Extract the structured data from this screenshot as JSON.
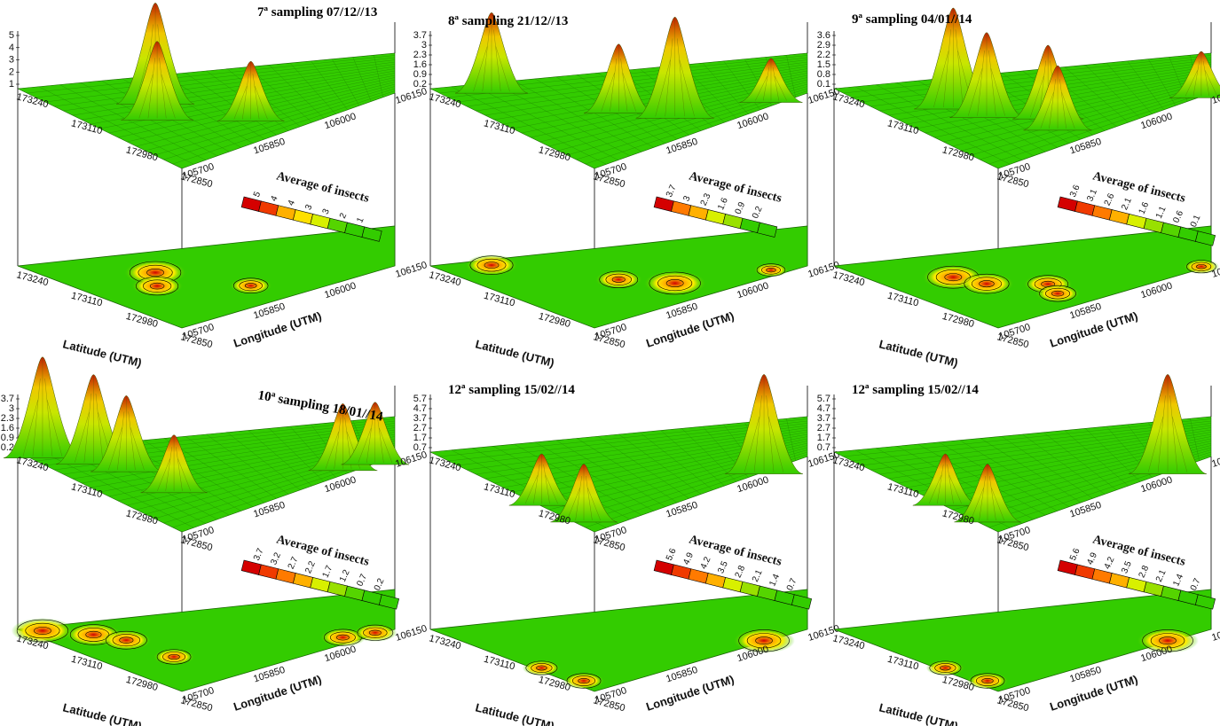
{
  "figure": {
    "colors": {
      "surface_low": "#33cc00",
      "surface_mid": "#ffee00",
      "surface_high": "#cc2200",
      "contour_line": "#000000",
      "box_line": "#000000"
    },
    "common": {
      "xlabel": "Latitude (UTM)",
      "ylabel": "Longitude (UTM)",
      "legend_title": "Average of insects",
      "legend_title_alt": "Average  of insects",
      "lat_ticks": [
        "173240",
        "173110",
        "172980",
        "172850"
      ],
      "lon_ticks": [
        "105700",
        "105850",
        "106000",
        "106150"
      ]
    }
  },
  "chart_data": [
    {
      "type": "heatmap",
      "title": "7ª sampling  07/12//13",
      "xlabel": "Latitude (UTM)",
      "ylabel": "Longitude (UTM)",
      "x_ticks": [
        "173240",
        "173110",
        "172980",
        "172850"
      ],
      "y_ticks": [
        "105700",
        "105850",
        "106000",
        "106150"
      ],
      "z_ticks": [
        "5",
        "4",
        "3",
        "2",
        "1"
      ],
      "legend_title": "Average  of insects",
      "legend_ticks": [
        "5",
        "4",
        "4",
        "3",
        "3",
        "2",
        "1"
      ],
      "zlim": [
        0,
        5
      ],
      "peaks": [
        {
          "lat": 173120,
          "lon": 105820,
          "value": 5.0
        },
        {
          "lat": 173050,
          "lon": 105790,
          "value": 3.6
        },
        {
          "lat": 172960,
          "lon": 105900,
          "value": 2.4
        }
      ]
    },
    {
      "type": "heatmap",
      "title": "8ª sampling  21/12//13",
      "xlabel": "Latitude (UTM)",
      "ylabel": "Longitude (UTM)",
      "x_ticks": [
        "173240",
        "173110",
        "172980",
        "172850"
      ],
      "y_ticks": [
        "105700",
        "105850",
        "106000",
        "106150"
      ],
      "z_ticks": [
        "3.7",
        "3",
        "2.3",
        "1.6",
        "0.9",
        "0.2"
      ],
      "legend_title": "Average of insects",
      "legend_ticks": [
        "3.7",
        "3",
        "2.3",
        "1.6",
        "0.9",
        "0.2"
      ],
      "zlim": [
        0.2,
        3.7
      ],
      "peaks": [
        {
          "lat": 173210,
          "lon": 105760,
          "value": 2.8
        },
        {
          "lat": 173040,
          "lon": 105860,
          "value": 2.3
        },
        {
          "lat": 172960,
          "lon": 105920,
          "value": 3.7
        },
        {
          "lat": 172900,
          "lon": 106080,
          "value": 1.2
        }
      ]
    },
    {
      "type": "heatmap",
      "title": "9ª sampling  04/01//14",
      "xlabel": "Latitude (UTM)",
      "ylabel": "Longitude (UTM)",
      "x_ticks": [
        "173240",
        "173110",
        "172980",
        "172850"
      ],
      "y_ticks": [
        "105700",
        "105850",
        "106000",
        "106150"
      ],
      "z_ticks": [
        "3.6",
        "2.9",
        "2.2",
        "1.5",
        "0.8",
        "0.1"
      ],
      "legend_title": "Average of insects",
      "legend_ticks": [
        "3.6",
        "3.1",
        "2.6",
        "2.1",
        "1.6",
        "1.1",
        "0.6",
        "0.1"
      ],
      "zlim": [
        0.1,
        3.6
      ],
      "peaks": [
        {
          "lat": 173110,
          "lon": 105790,
          "value": 3.6
        },
        {
          "lat": 173050,
          "lon": 105810,
          "value": 2.9
        },
        {
          "lat": 172990,
          "lon": 105880,
          "value": 2.4
        },
        {
          "lat": 172930,
          "lon": 105870,
          "value": 2.0
        },
        {
          "lat": 172870,
          "lon": 106130,
          "value": 1.2
        }
      ]
    },
    {
      "type": "heatmap",
      "title": "10ª sampling  18/01//14",
      "xlabel": "Latitude (UTM)",
      "ylabel": "Longitude (UTM)",
      "x_ticks": [
        "173240",
        "173110",
        "172980",
        "172850"
      ],
      "y_ticks": [
        "105700",
        "105850",
        "106000",
        "106150"
      ],
      "z_ticks": [
        "3.7",
        "3",
        "2.3",
        "1.6",
        "0.9",
        "0.2"
      ],
      "legend_title": "Average of insects",
      "legend_ticks": [
        "3.7",
        "3.2",
        "2.7",
        "2.2",
        "1.7",
        "1.2",
        "0.7",
        "0.2"
      ],
      "zlim": [
        0.2,
        3.7
      ],
      "peaks": [
        {
          "lat": 173220,
          "lon": 105720,
          "value": 3.7
        },
        {
          "lat": 173170,
          "lon": 105760,
          "value": 3.2
        },
        {
          "lat": 173120,
          "lon": 105780,
          "value": 2.6
        },
        {
          "lat": 173000,
          "lon": 105790,
          "value": 1.8
        },
        {
          "lat": 172900,
          "lon": 106050,
          "value": 2.2
        },
        {
          "lat": 172870,
          "lon": 106110,
          "value": 2.0
        }
      ]
    },
    {
      "type": "heatmap",
      "title": "12ª sampling 15/02//14",
      "xlabel": "Latitude (UTM)",
      "ylabel": "Longitude (UTM)",
      "x_ticks": [
        "173240",
        "173110",
        "172980",
        "172850"
      ],
      "y_ticks": [
        "105700",
        "105850",
        "106000",
        "106150"
      ],
      "z_ticks": [
        "5.7",
        "4.7",
        "3.7",
        "2.7",
        "1.7",
        "0.7"
      ],
      "legend_title": "Average of insects",
      "legend_ticks": [
        "5.6",
        "4.9",
        "4.2",
        "3.5",
        "2.8",
        "2.1",
        "1.4",
        "0.7"
      ],
      "zlim": [
        0.7,
        5.7
      ],
      "peaks": [
        {
          "lat": 172860,
          "lon": 106060,
          "value": 5.6
        },
        {
          "lat": 172990,
          "lon": 105710,
          "value": 2.6
        },
        {
          "lat": 172900,
          "lon": 105720,
          "value": 3.0
        }
      ]
    },
    {
      "type": "heatmap",
      "title": "12ª sampling 15/02//14",
      "xlabel": "Latitude (UTM)",
      "ylabel": "Longitude (UTM)",
      "x_ticks": [
        "173240",
        "173110",
        "172980",
        "172850"
      ],
      "y_ticks": [
        "105700",
        "105850",
        "106000",
        "106150"
      ],
      "z_ticks": [
        "5.7",
        "4.7",
        "3.7",
        "2.7",
        "1.7",
        "0.7"
      ],
      "legend_title": "Average of insects",
      "legend_ticks": [
        "5.6",
        "4.9",
        "4.2",
        "3.5",
        "2.8",
        "2.1",
        "1.4",
        "0.7"
      ],
      "zlim": [
        0.7,
        5.7
      ],
      "peaks": [
        {
          "lat": 172860,
          "lon": 106060,
          "value": 5.6
        },
        {
          "lat": 172990,
          "lon": 105710,
          "value": 2.6
        },
        {
          "lat": 172900,
          "lon": 105720,
          "value": 3.0
        }
      ]
    }
  ]
}
